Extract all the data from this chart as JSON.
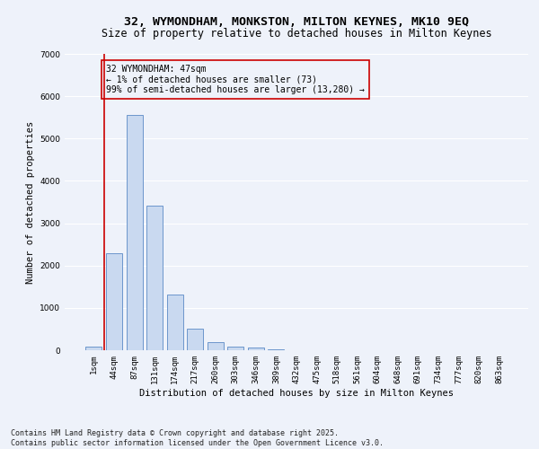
{
  "title_line1": "32, WYMONDHAM, MONKSTON, MILTON KEYNES, MK10 9EQ",
  "title_line2": "Size of property relative to detached houses in Milton Keynes",
  "xlabel": "Distribution of detached houses by size in Milton Keynes",
  "ylabel": "Number of detached properties",
  "categories": [
    "1sqm",
    "44sqm",
    "87sqm",
    "131sqm",
    "174sqm",
    "217sqm",
    "260sqm",
    "303sqm",
    "346sqm",
    "389sqm",
    "432sqm",
    "475sqm",
    "518sqm",
    "561sqm",
    "604sqm",
    "648sqm",
    "691sqm",
    "734sqm",
    "777sqm",
    "820sqm",
    "863sqm"
  ],
  "values": [
    75,
    2300,
    5550,
    3420,
    1320,
    500,
    195,
    80,
    70,
    30,
    0,
    0,
    0,
    0,
    0,
    0,
    0,
    0,
    0,
    0,
    0
  ],
  "bar_color": "#c9d9f0",
  "bar_edge_color": "#5a8ac6",
  "vline_x": 0.5,
  "vline_color": "#cc0000",
  "annotation_box_text": "32 WYMONDHAM: 47sqm\n← 1% of detached houses are smaller (73)\n99% of semi-detached houses are larger (13,280) →",
  "annotation_box_color": "#cc0000",
  "annotation_text_color": "#000000",
  "ylim": [
    0,
    7000
  ],
  "yticks": [
    0,
    1000,
    2000,
    3000,
    4000,
    5000,
    6000,
    7000
  ],
  "background_color": "#eef2fa",
  "grid_color": "#ffffff",
  "footer_line1": "Contains HM Land Registry data © Crown copyright and database right 2025.",
  "footer_line2": "Contains public sector information licensed under the Open Government Licence v3.0.",
  "title_fontsize": 9.5,
  "subtitle_fontsize": 8.5,
  "axis_label_fontsize": 7.5,
  "tick_fontsize": 6.5,
  "annotation_fontsize": 7,
  "footer_fontsize": 6
}
